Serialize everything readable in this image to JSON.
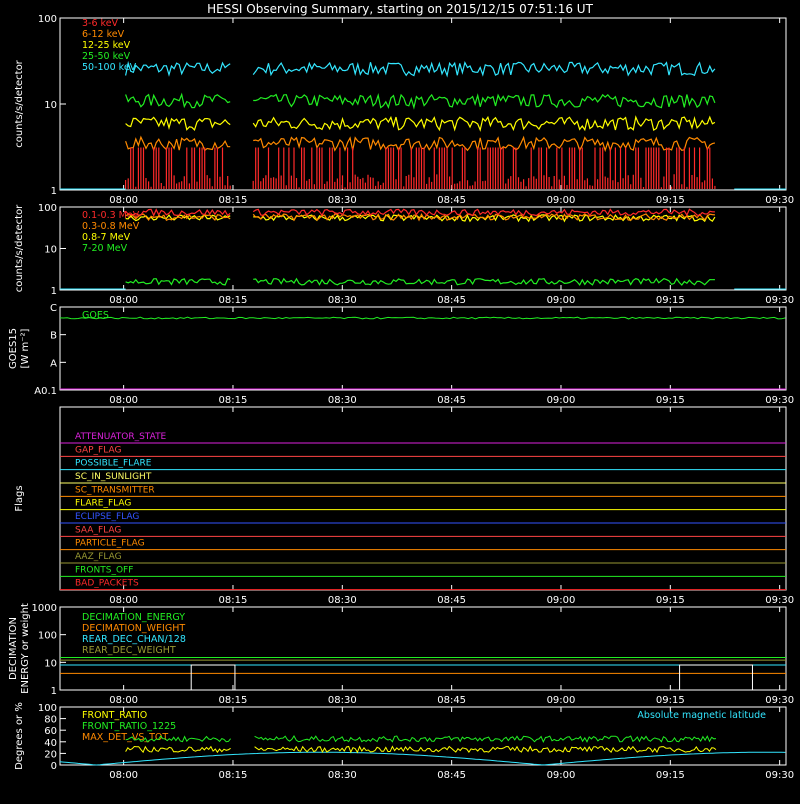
{
  "chart_data": {
    "type": "line",
    "title": "HESSI Observing Summary, starting on 2015/12/15 07:51:16 UT",
    "x_tick_labels": [
      "08:00",
      "08:15",
      "08:30",
      "08:45",
      "09:00",
      "09:15",
      "09:30"
    ],
    "x_ticks_min": [
      8.73,
      23.73,
      38.73,
      53.73,
      68.73,
      83.73,
      98.73
    ],
    "x_range_min": [
      0,
      99.6
    ],
    "data_gap_min": [
      [
        0,
        9
      ],
      [
        23.5,
        26.5
      ],
      [
        90,
        92.5
      ]
    ],
    "panels": [
      {
        "id": "xray-low",
        "ylabel": "counts/s/detector",
        "scale": "log",
        "ylim": [
          1,
          100
        ],
        "yticks": [
          {
            "v": 1,
            "label": "1"
          },
          {
            "v": 10,
            "label": "10"
          },
          {
            "v": 100,
            "label": "100"
          }
        ],
        "series": [
          {
            "name": "3-6 keV",
            "color": "#ff2a2a",
            "level": 1.3,
            "style": "spiky"
          },
          {
            "name": "6-12 keV",
            "color": "#ff8a00",
            "level": 3.5,
            "style": "noisy"
          },
          {
            "name": "12-25 keV",
            "color": "#ffff00",
            "level": 6.0,
            "style": "noisy"
          },
          {
            "name": "25-50 keV",
            "color": "#22ee22",
            "level": 11.0,
            "style": "noisy"
          },
          {
            "name": "50-100 keV",
            "color": "#33e6ff",
            "level": 26.0,
            "style": "noisy"
          }
        ]
      },
      {
        "id": "gamma",
        "ylabel": "counts/s/detector",
        "scale": "log",
        "ylim": [
          1,
          100
        ],
        "yticks": [
          {
            "v": 1,
            "label": "1"
          },
          {
            "v": 10,
            "label": "10"
          },
          {
            "v": 100,
            "label": "100"
          }
        ],
        "series": [
          {
            "name": "0.1-0.3 MeV",
            "color": "#ff2a2a",
            "level": 75
          },
          {
            "name": "0.3-0.8 MeV",
            "color": "#ff8a00",
            "level": 58
          },
          {
            "name": "0.8-7 MeV",
            "color": "#ffff00",
            "level": 55
          },
          {
            "name": "7-20 MeV",
            "color": "#22ee22",
            "level": 1.6
          }
        ]
      },
      {
        "id": "goes",
        "ylabel": "GOES15",
        "ylabel2": "[W m⁻²]",
        "scale": "log",
        "yticks": [
          {
            "v": 1,
            "label": "A0.1"
          },
          {
            "v": 2,
            "label": "A"
          },
          {
            "v": 3,
            "label": "B"
          },
          {
            "v": 4,
            "label": "C"
          }
        ],
        "ylim": [
          1,
          4
        ],
        "series": [
          {
            "name": "GOES",
            "color": "#22ee22",
            "level": 3.6
          }
        ],
        "baseline_color": "#dd22dd"
      },
      {
        "id": "flags",
        "ylabel": "Flags",
        "flags": [
          {
            "name": "ATTENUATOR_STATE",
            "color": "#dd22dd"
          },
          {
            "name": "GAP_FLAG",
            "color": "#ff4444"
          },
          {
            "name": "POSSIBLE_FLARE",
            "color": "#33e6ff"
          },
          {
            "name": "SC_IN_SUNLIGHT",
            "color": "#ffff66"
          },
          {
            "name": "SC_TRANSMITTER",
            "color": "#ff8a00"
          },
          {
            "name": "FLARE_FLAG",
            "color": "#ffff00"
          },
          {
            "name": "ECLIPSE_FLAG",
            "color": "#3355ff"
          },
          {
            "name": "SAA_FLAG",
            "color": "#ff4444"
          },
          {
            "name": "PARTICLE_FLAG",
            "color": "#ff8a00"
          },
          {
            "name": "AAZ_FLAG",
            "color": "#999933"
          },
          {
            "name": "FRONTS_OFF",
            "color": "#22ee22"
          },
          {
            "name": "BAD_PACKETS",
            "color": "#ff2a2a"
          }
        ]
      },
      {
        "id": "decimation",
        "ylabel": "DECIMATION",
        "ylabel2": "ENERGY or weight",
        "scale": "log",
        "ylim": [
          1,
          1000
        ],
        "yticks": [
          {
            "v": 1,
            "label": "1"
          },
          {
            "v": 10,
            "label": "10"
          },
          {
            "v": 100,
            "label": "100"
          },
          {
            "v": 1000,
            "label": "1000"
          }
        ],
        "series": [
          {
            "name": "DECIMATION_ENERGY",
            "color": "#22ee22",
            "level": 15
          },
          {
            "name": "DECIMATION_WEIGHT",
            "color": "#ff8a00",
            "level": 4
          },
          {
            "name": "REAR_DEC_CHAN/128",
            "color": "#33e6ff",
            "level": 8
          },
          {
            "name": "REAR_DEC_WEIGHT",
            "color": "#999933",
            "level": 12
          }
        ]
      },
      {
        "id": "ratio",
        "ylabel": "Degrees or %",
        "scale": "linear",
        "ylim": [
          0,
          100
        ],
        "yticks": [
          {
            "v": 0,
            "label": "0"
          },
          {
            "v": 20,
            "label": "20"
          },
          {
            "v": 40,
            "label": "40"
          },
          {
            "v": 60,
            "label": "60"
          },
          {
            "v": 80,
            "label": "80"
          },
          {
            "v": 100,
            "label": "100"
          }
        ],
        "series": [
          {
            "name": "FRONT_RATIO",
            "color": "#ffff00",
            "level": 27
          },
          {
            "name": "FRONT_RATIO_1225",
            "color": "#22ee22",
            "level": 45
          },
          {
            "name": "MAX_DET_VS_TOT",
            "color": "#ff8a00",
            "level": 0
          }
        ],
        "annotation": "Absolute magnetic latitude",
        "annotation_color": "#33e6ff"
      }
    ]
  }
}
